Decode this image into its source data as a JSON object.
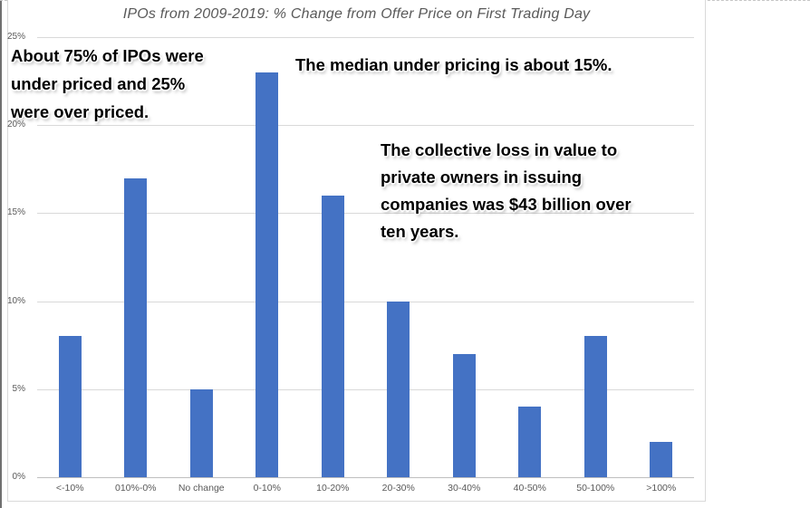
{
  "chart_data": {
    "type": "bar",
    "title": "IPOs from 2009-2019: % Change from Offer Price on First Trading Day",
    "categories": [
      "<-10%",
      "010%-0%",
      "No change",
      "0-10%",
      "10-20%",
      "20-30%",
      "30-40%",
      "40-50%",
      "50-100%",
      ">100%"
    ],
    "values": [
      8,
      17,
      5,
      23,
      16,
      10,
      7,
      4,
      8,
      2
    ],
    "xlabel": "",
    "ylabel": "",
    "ylim": [
      0,
      25
    ],
    "y_tick_step": 5,
    "y_tick_labels": [
      "0%",
      "5%",
      "10%",
      "15%",
      "20%",
      "25%"
    ],
    "grid": true,
    "legend": "none",
    "bar_color": "#4472C4",
    "gridline_color": "#d9d9d9",
    "axis_line_color": "#bfbfbf",
    "tick_label_color": "#595959",
    "title_color": "#595959"
  },
  "annotations": {
    "left_note": "About 75% of IPOs were\nunder priced and 25%\nwere over priced.",
    "median_note": "The median under pricing is about 15%.",
    "loss_note": "The collective loss in value to\nprivate owners in issuing\ncompanies was $43 billion over\nten years."
  }
}
